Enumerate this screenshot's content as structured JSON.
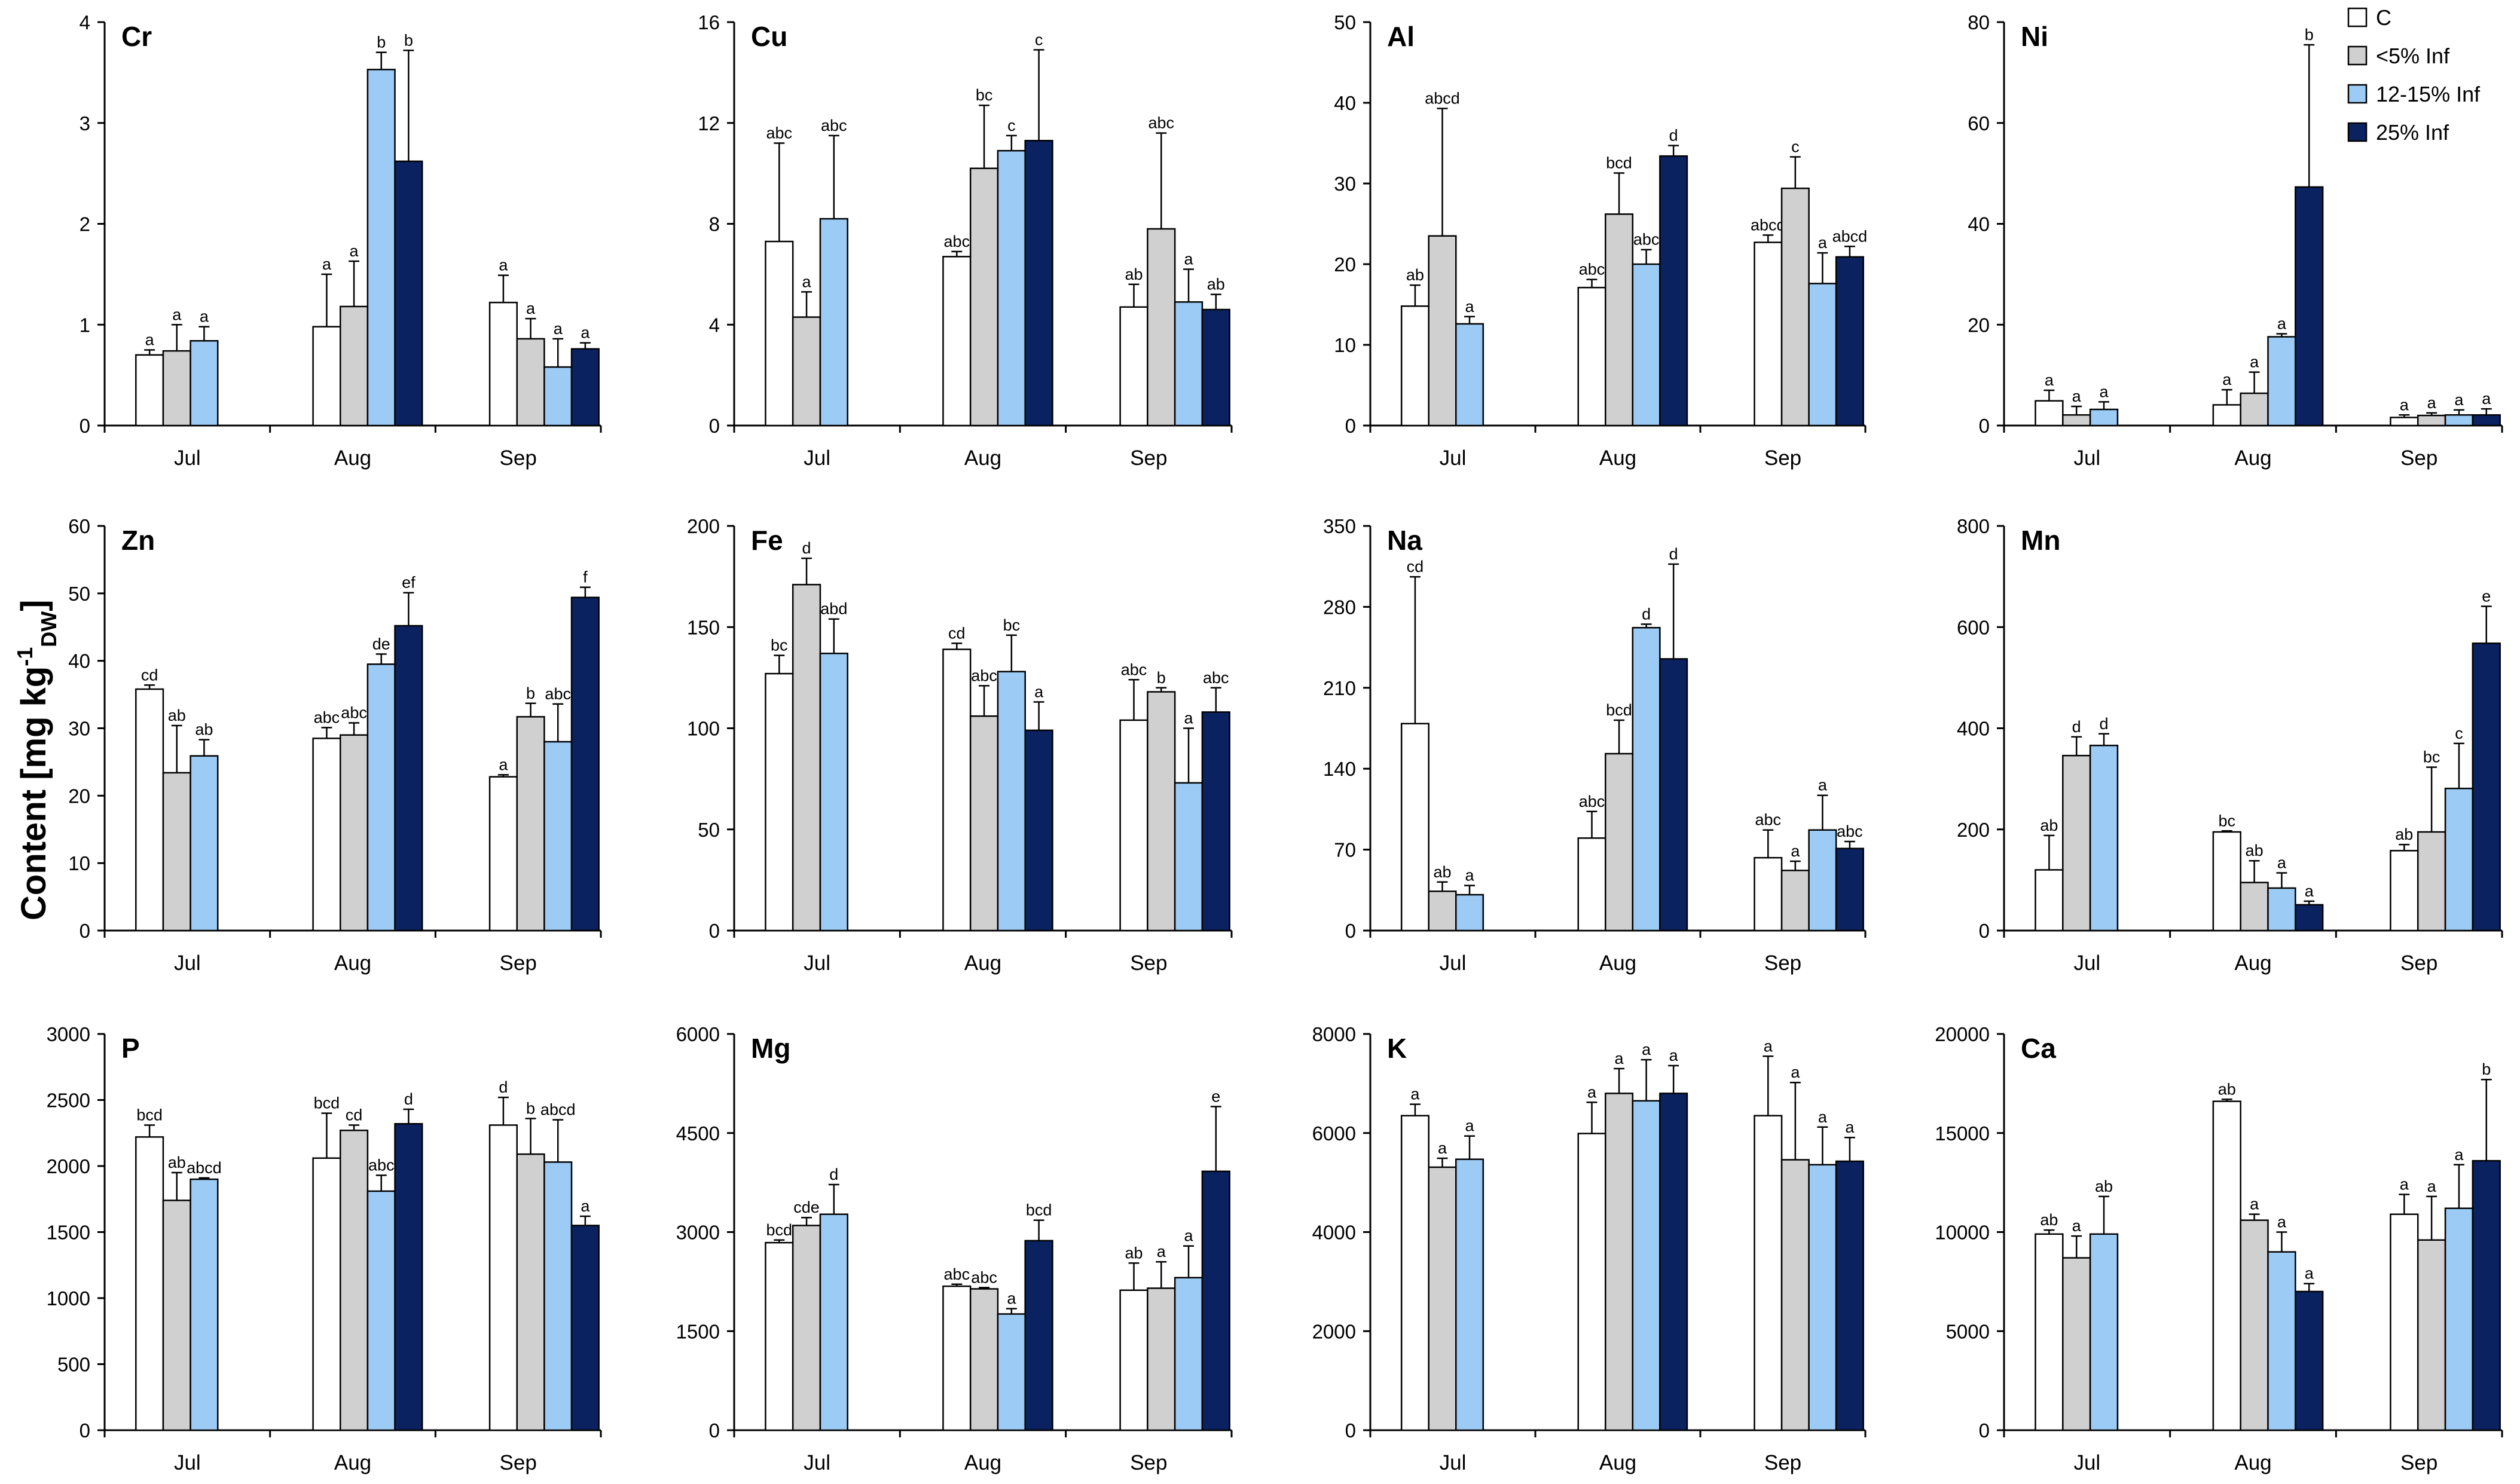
{
  "figure": {
    "ylabel_main": "Content [mg kg",
    "ylabel_sup": "-1",
    "ylabel_sub": "DW",
    "ylabel_close": "]"
  },
  "legend": {
    "entries": [
      {
        "label": "C",
        "color": "#ffffff"
      },
      {
        "label": "<5% Inf",
        "color": "#d0d0d0"
      },
      {
        "label": "12-15% Inf",
        "color": "#9ccbf5"
      },
      {
        "label": "25% Inf",
        "color": "#0a2260"
      }
    ]
  },
  "chart_data": [
    {
      "type": "bar",
      "title": "Cr",
      "categories": [
        "Jul",
        "Aug",
        "Sep"
      ],
      "ylim": [
        0,
        4
      ],
      "yticks": [
        0,
        1,
        2,
        3,
        4
      ],
      "series": [
        {
          "name": "C",
          "values": [
            0.7,
            0.98,
            1.22
          ],
          "errors": [
            0.05,
            0.52,
            0.27
          ],
          "letters": [
            "a",
            "a",
            "a"
          ]
        },
        {
          "name": "<5% Inf",
          "values": [
            0.74,
            1.18,
            0.86
          ],
          "errors": [
            0.26,
            0.45,
            0.2
          ],
          "letters": [
            "a",
            "a",
            "a"
          ]
        },
        {
          "name": "12-15% Inf",
          "values": [
            0.84,
            3.53,
            0.58
          ],
          "errors": [
            0.14,
            0.17,
            0.28
          ],
          "letters": [
            "a",
            "b",
            "a"
          ]
        },
        {
          "name": "25% Inf",
          "values": [
            null,
            2.62,
            0.76
          ],
          "errors": [
            null,
            1.1,
            0.06
          ],
          "letters": [
            "",
            "b",
            "a"
          ]
        }
      ]
    },
    {
      "type": "bar",
      "title": "Cu",
      "categories": [
        "Jul",
        "Aug",
        "Sep"
      ],
      "ylim": [
        0,
        16
      ],
      "yticks": [
        0,
        4,
        8,
        12,
        16
      ],
      "series": [
        {
          "name": "C",
          "values": [
            7.3,
            6.7,
            4.7
          ],
          "errors": [
            3.9,
            0.2,
            0.9
          ],
          "letters": [
            "abc",
            "abc",
            "ab"
          ]
        },
        {
          "name": "<5% Inf",
          "values": [
            4.3,
            10.2,
            7.8
          ],
          "errors": [
            1.0,
            2.5,
            3.8
          ],
          "letters": [
            "a",
            "bc",
            "abc"
          ]
        },
        {
          "name": "12-15% Inf",
          "values": [
            8.2,
            10.9,
            4.9
          ],
          "errors": [
            3.3,
            0.6,
            1.3
          ],
          "letters": [
            "abc",
            "c",
            "a"
          ]
        },
        {
          "name": "25% Inf",
          "values": [
            null,
            11.3,
            4.6
          ],
          "errors": [
            null,
            3.6,
            0.6
          ],
          "letters": [
            "",
            "c",
            "ab"
          ]
        }
      ]
    },
    {
      "type": "bar",
      "title": "Al",
      "categories": [
        "Jul",
        "Aug",
        "Sep"
      ],
      "ylim": [
        0,
        50
      ],
      "yticks": [
        0,
        10,
        20,
        30,
        40,
        50
      ],
      "series": [
        {
          "name": "C",
          "values": [
            14.8,
            17.1,
            22.7
          ],
          "errors": [
            2.6,
            1.0,
            0.9
          ],
          "letters": [
            "ab",
            "abc",
            "abcd"
          ]
        },
        {
          "name": "<5% Inf",
          "values": [
            23.5,
            26.2,
            29.4
          ],
          "errors": [
            15.8,
            5.1,
            3.9
          ],
          "letters": [
            "abcd",
            "bcd",
            "c"
          ]
        },
        {
          "name": "12-15% Inf",
          "values": [
            12.6,
            20.0,
            17.6
          ],
          "errors": [
            0.9,
            1.8,
            3.8
          ],
          "letters": [
            "a",
            "abc",
            "a"
          ]
        },
        {
          "name": "25% Inf",
          "values": [
            null,
            33.4,
            20.9
          ],
          "errors": [
            null,
            1.3,
            1.3
          ],
          "letters": [
            "",
            "d",
            "abcd"
          ]
        }
      ]
    },
    {
      "type": "bar",
      "title": "Ni",
      "categories": [
        "Jul",
        "Aug",
        "Sep"
      ],
      "ylim": [
        0,
        80
      ],
      "yticks": [
        0,
        20,
        40,
        60,
        80
      ],
      "series": [
        {
          "name": "C",
          "values": [
            4.9,
            4.1,
            1.6
          ],
          "errors": [
            2.1,
            3.0,
            0.5
          ],
          "letters": [
            "a",
            "a",
            "a"
          ]
        },
        {
          "name": "<5% Inf",
          "values": [
            2.1,
            6.4,
            2.0
          ],
          "errors": [
            1.7,
            4.2,
            0.5
          ],
          "letters": [
            "a",
            "a",
            "a"
          ]
        },
        {
          "name": "12-15% Inf",
          "values": [
            3.2,
            17.6,
            2.1
          ],
          "errors": [
            1.5,
            0.6,
            1.0
          ],
          "letters": [
            "a",
            "a",
            "a"
          ]
        },
        {
          "name": "25% Inf",
          "values": [
            null,
            47.3,
            2.1
          ],
          "errors": [
            null,
            28.2,
            1.2
          ],
          "letters": [
            "",
            "b",
            "a"
          ]
        }
      ]
    },
    {
      "type": "bar",
      "title": "Zn",
      "categories": [
        "Jul",
        "Aug",
        "Sep"
      ],
      "ylim": [
        0,
        60
      ],
      "yticks": [
        0,
        10,
        20,
        30,
        40,
        50,
        60
      ],
      "series": [
        {
          "name": "C",
          "values": [
            35.8,
            28.5,
            22.8
          ],
          "errors": [
            0.6,
            1.6,
            0.3
          ],
          "letters": [
            "cd",
            "abc",
            "a"
          ]
        },
        {
          "name": "<5% Inf",
          "values": [
            23.4,
            29.0,
            31.7
          ],
          "errors": [
            7.0,
            1.8,
            2.0
          ],
          "letters": [
            "ab",
            "abc",
            "b"
          ]
        },
        {
          "name": "12-15% Inf",
          "values": [
            25.9,
            39.5,
            28.0
          ],
          "errors": [
            2.4,
            1.5,
            5.6
          ],
          "letters": [
            "ab",
            "de",
            "abc"
          ]
        },
        {
          "name": "25% Inf",
          "values": [
            null,
            45.2,
            49.4
          ],
          "errors": [
            null,
            4.9,
            1.5
          ],
          "letters": [
            "",
            "ef",
            "f"
          ]
        }
      ]
    },
    {
      "type": "bar",
      "title": "Fe",
      "categories": [
        "Jul",
        "Aug",
        "Sep"
      ],
      "ylim": [
        0,
        200
      ],
      "yticks": [
        0,
        50,
        100,
        150,
        200
      ],
      "series": [
        {
          "name": "C",
          "values": [
            127,
            139,
            104
          ],
          "errors": [
            9,
            3,
            20
          ],
          "letters": [
            "bc",
            "cd",
            "abc"
          ]
        },
        {
          "name": "<5% Inf",
          "values": [
            171,
            106,
            118
          ],
          "errors": [
            13,
            15,
            2
          ],
          "letters": [
            "d",
            "abc",
            "b"
          ]
        },
        {
          "name": "12-15% Inf",
          "values": [
            137,
            128,
            73
          ],
          "errors": [
            17,
            18,
            27
          ],
          "letters": [
            "abd",
            "bc",
            "a"
          ]
        },
        {
          "name": "25% Inf",
          "values": [
            null,
            99,
            108
          ],
          "errors": [
            null,
            14,
            12
          ],
          "letters": [
            "",
            "a",
            "abc"
          ]
        }
      ]
    },
    {
      "type": "bar",
      "title": "Na",
      "categories": [
        "Jul",
        "Aug",
        "Sep"
      ],
      "ylim": [
        0,
        350
      ],
      "yticks": [
        0,
        70,
        140,
        210,
        280,
        350
      ],
      "series": [
        {
          "name": "C",
          "values": [
            179,
            80,
            63
          ],
          "errors": [
            127,
            23,
            24
          ],
          "letters": [
            "cd",
            "abc",
            "abc"
          ]
        },
        {
          "name": "<5% Inf",
          "values": [
            34,
            153,
            52
          ],
          "errors": [
            8,
            29,
            8
          ],
          "letters": [
            "ab",
            "bcd",
            "a"
          ]
        },
        {
          "name": "12-15% Inf",
          "values": [
            31,
            262,
            87
          ],
          "errors": [
            8,
            3,
            30
          ],
          "letters": [
            "a",
            "d",
            "a"
          ]
        },
        {
          "name": "25% Inf",
          "values": [
            null,
            235,
            71
          ],
          "errors": [
            null,
            82,
            6
          ],
          "letters": [
            "",
            "d",
            "abc"
          ]
        }
      ]
    },
    {
      "type": "bar",
      "title": "Mn",
      "categories": [
        "Jul",
        "Aug",
        "Sep"
      ],
      "ylim": [
        0,
        800
      ],
      "yticks": [
        0,
        200,
        400,
        600,
        800
      ],
      "series": [
        {
          "name": "C",
          "values": [
            120,
            195,
            158
          ],
          "errors": [
            68,
            2,
            12
          ],
          "letters": [
            "ab",
            "bc",
            "ab"
          ]
        },
        {
          "name": "<5% Inf",
          "values": [
            346,
            95,
            195
          ],
          "errors": [
            37,
            43,
            128
          ],
          "letters": [
            "d",
            "ab",
            "bc"
          ]
        },
        {
          "name": "12-15% Inf",
          "values": [
            366,
            84,
            281
          ],
          "errors": [
            23,
            30,
            89
          ],
          "letters": [
            "d",
            "a",
            "c"
          ]
        },
        {
          "name": "25% Inf",
          "values": [
            null,
            51,
            568
          ],
          "errors": [
            null,
            7,
            73
          ],
          "letters": [
            "",
            "a",
            "e"
          ]
        }
      ]
    },
    {
      "type": "bar",
      "title": "P",
      "categories": [
        "Jul",
        "Aug",
        "Sep"
      ],
      "ylim": [
        0,
        3000
      ],
      "yticks": [
        0,
        500,
        1000,
        1500,
        2000,
        2500,
        3000
      ],
      "series": [
        {
          "name": "C",
          "values": [
            2220,
            2060,
            2310
          ],
          "errors": [
            90,
            340,
            210
          ],
          "letters": [
            "bcd",
            "bcd",
            "d"
          ]
        },
        {
          "name": "<5% Inf",
          "values": [
            1740,
            2270,
            2090
          ],
          "errors": [
            210,
            40,
            270
          ],
          "letters": [
            "ab",
            "cd",
            "b"
          ]
        },
        {
          "name": "12-15% Inf",
          "values": [
            1900,
            1810,
            2030
          ],
          "errors": [
            10,
            120,
            320
          ],
          "letters": [
            "abcd",
            "abc",
            "abcd"
          ]
        },
        {
          "name": "25% Inf",
          "values": [
            null,
            2320,
            1550
          ],
          "errors": [
            null,
            110,
            70
          ],
          "letters": [
            "",
            "d",
            "a"
          ]
        }
      ]
    },
    {
      "type": "bar",
      "title": "Mg",
      "categories": [
        "Jul",
        "Aug",
        "Sep"
      ],
      "ylim": [
        0,
        6000
      ],
      "yticks": [
        0,
        1500,
        3000,
        4500,
        6000
      ],
      "series": [
        {
          "name": "C",
          "values": [
            2840,
            2180,
            2120
          ],
          "errors": [
            40,
            30,
            410
          ],
          "letters": [
            "bcd",
            "abc",
            "ab"
          ]
        },
        {
          "name": "<5% Inf",
          "values": [
            3100,
            2140,
            2150
          ],
          "errors": [
            120,
            20,
            400
          ],
          "letters": [
            "cde",
            "abc",
            "a"
          ]
        },
        {
          "name": "12-15% Inf",
          "values": [
            3270,
            1760,
            2310
          ],
          "errors": [
            450,
            80,
            480
          ],
          "letters": [
            "d",
            "a",
            "a"
          ]
        },
        {
          "name": "25% Inf",
          "values": [
            null,
            2870,
            3920
          ],
          "errors": [
            null,
            310,
            980
          ],
          "letters": [
            "",
            "bcd",
            "e"
          ]
        }
      ]
    },
    {
      "type": "bar",
      "title": "K",
      "categories": [
        "Jul",
        "Aug",
        "Sep"
      ],
      "ylim": [
        0,
        8000
      ],
      "yticks": [
        0,
        2000,
        4000,
        6000,
        8000
      ],
      "series": [
        {
          "name": "C",
          "values": [
            6350,
            5990,
            6350
          ],
          "errors": [
            230,
            630,
            1200
          ],
          "letters": [
            "a",
            "a",
            "a"
          ]
        },
        {
          "name": "<5% Inf",
          "values": [
            5310,
            6800,
            5460
          ],
          "errors": [
            180,
            500,
            1560
          ],
          "letters": [
            "a",
            "a",
            "a"
          ]
        },
        {
          "name": "12-15% Inf",
          "values": [
            5470,
            6650,
            5360
          ],
          "errors": [
            470,
            830,
            760
          ],
          "letters": [
            "a",
            "a",
            "a"
          ]
        },
        {
          "name": "25% Inf",
          "values": [
            null,
            6800,
            5430
          ],
          "errors": [
            null,
            560,
            480
          ],
          "letters": [
            "",
            "a",
            "a"
          ]
        }
      ]
    },
    {
      "type": "bar",
      "title": "Ca",
      "categories": [
        "Jul",
        "Aug",
        "Sep"
      ],
      "ylim": [
        0,
        20000
      ],
      "yticks": [
        0,
        5000,
        10000,
        15000,
        20000
      ],
      "series": [
        {
          "name": "C",
          "values": [
            9900,
            16600,
            10900
          ],
          "errors": [
            200,
            100,
            1000
          ],
          "letters": [
            "ab",
            "ab",
            "a"
          ]
        },
        {
          "name": "<5% Inf",
          "values": [
            8700,
            10600,
            9600
          ],
          "errors": [
            1100,
            300,
            2200
          ],
          "letters": [
            "a",
            "a",
            "a"
          ]
        },
        {
          "name": "12-15% Inf",
          "values": [
            9900,
            9000,
            11200
          ],
          "errors": [
            1900,
            1000,
            2200
          ],
          "letters": [
            "ab",
            "a",
            "a"
          ]
        },
        {
          "name": "25% Inf",
          "values": [
            null,
            7000,
            13600
          ],
          "errors": [
            null,
            400,
            4100
          ],
          "letters": [
            "",
            "a",
            "b"
          ]
        }
      ]
    }
  ]
}
